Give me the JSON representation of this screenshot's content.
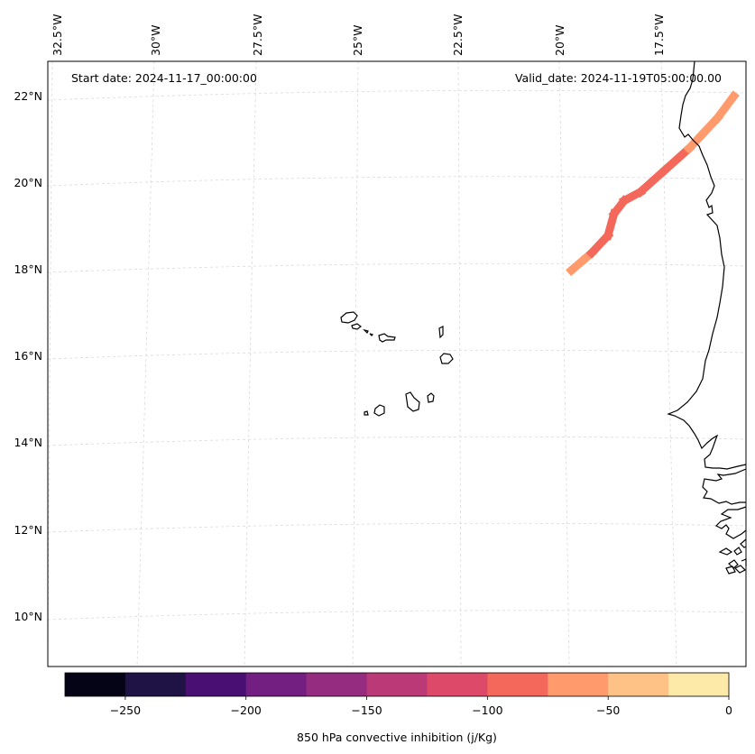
{
  "map": {
    "start_date_label": "Start date: 2024-11-17_00:00:00",
    "valid_date_label": "Valid_date: 2024-11-19T05:00:00.00",
    "lon_ticks": [
      "32.5°W",
      "30°W",
      "27.5°W",
      "25°W",
      "22.5°W",
      "20°W",
      "17.5°W"
    ],
    "lat_ticks": [
      "22°N",
      "20°N",
      "18°N",
      "16°N",
      "14°N",
      "12°N",
      "10°N"
    ],
    "extent": {
      "lon_min": -33.0,
      "lon_max": -15.8,
      "lat_min": 8.9,
      "lat_max": 22.8
    },
    "track": {
      "description_values_unit": "j/Kg",
      "points": [
        {
          "lon": -20.1,
          "lat": 18.0,
          "value": -60
        },
        {
          "lon": -19.6,
          "lat": 18.4,
          "value": -70
        },
        {
          "lon": -19.2,
          "lat": 18.8,
          "value": -85
        },
        {
          "lon": -19.05,
          "lat": 19.3,
          "value": -90
        },
        {
          "lon": -18.8,
          "lat": 19.6,
          "value": -90
        },
        {
          "lon": -18.4,
          "lat": 19.8,
          "value": -85
        },
        {
          "lon": -17.8,
          "lat": 20.3,
          "value": -80
        },
        {
          "lon": -17.2,
          "lat": 20.8,
          "value": -70
        },
        {
          "lon": -16.9,
          "lat": 21.1,
          "value": -60
        },
        {
          "lon": -16.5,
          "lat": 21.5,
          "value": -55
        },
        {
          "lon": -16.1,
          "lat": 22.0,
          "value": -55
        }
      ]
    }
  },
  "colorbar": {
    "label": "850 hPa convective inhibition (j/Kg)",
    "boundaries": [
      -275,
      -250,
      -225,
      -200,
      -175,
      -150,
      -125,
      -100,
      -75,
      -50,
      -25,
      0
    ],
    "colors": [
      "#050416",
      "#1f1245",
      "#4a0f73",
      "#721f81",
      "#962c80",
      "#bc3978",
      "#dd4968",
      "#f4685c",
      "#fe9a6b",
      "#fec287",
      "#fde9a8"
    ],
    "tick_labels": [
      "−250",
      "−200",
      "−150",
      "−100",
      "−50",
      "0"
    ],
    "tick_values": [
      -250,
      -200,
      -150,
      -100,
      -50,
      0
    ]
  },
  "colors": {
    "coastline": "#000000",
    "grid": "#d9d9d9",
    "frame": "#000000"
  }
}
